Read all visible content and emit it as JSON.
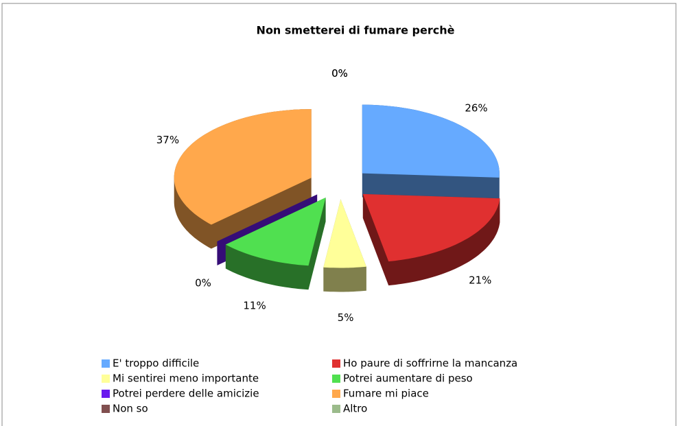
{
  "chart_data": {
    "type": "pie",
    "title": "Non smetterei di fumare perchè",
    "categories": [
      "E' troppo difficile",
      "Ho paure di soffrirne la mancanza",
      "Mi sentirei meno importante",
      "Potrei aumentare di peso",
      "Potrei perdere delle amicizie",
      "Fumare mi piace",
      "Non so",
      "Altro"
    ],
    "values": [
      26,
      21,
      5,
      11,
      0,
      37,
      0,
      0
    ],
    "value_labels": [
      "26%",
      "21%",
      "5%",
      "11%",
      "0%",
      "37%",
      "0%",
      "0%"
    ],
    "colors": [
      "#66aaff",
      "#e03030",
      "#ffff99",
      "#50e050",
      "#6a1aee",
      "#ffa84c",
      "#804f4f",
      "#9bbb8b"
    ],
    "legend": "bottom"
  }
}
